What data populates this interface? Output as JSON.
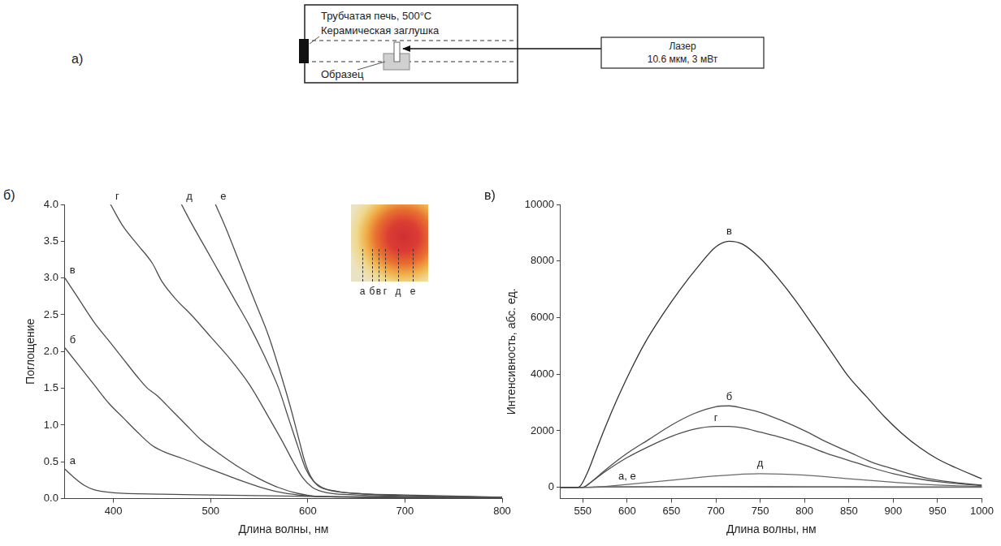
{
  "diagram": {
    "panel": "а)",
    "furnace": "Трубчатая печь, 500°C",
    "plug": "Керамическая заглушка",
    "sample": "Образец",
    "laser": [
      "Лазер",
      "10.6 мкм, 3 мВт"
    ]
  },
  "chart_data": [
    {
      "panel": "б)",
      "type": "line",
      "x_label": "Длина волны, нм",
      "y_label": "Поглощение",
      "xlim": [
        350,
        800
      ],
      "xticks": [
        400,
        500,
        600,
        700,
        800
      ],
      "ylim": [
        0,
        4
      ],
      "yticks": [
        {
          "value": 0,
          "label": "0.0"
        },
        {
          "value": 0.5,
          "label": "0.5"
        },
        {
          "value": 1,
          "label": "1.0"
        },
        {
          "value": 1.5,
          "label": "1.5"
        },
        {
          "value": 2,
          "label": "2.0"
        },
        {
          "value": 2.5,
          "label": "2.5"
        },
        {
          "value": 3,
          "label": "3.0"
        },
        {
          "value": 3.5,
          "label": "3.5"
        },
        {
          "value": 4,
          "label": "4.0"
        }
      ],
      "grid": false,
      "inset": {
        "labels": [
          "а",
          "б",
          "в",
          "г",
          "д",
          "е"
        ]
      },
      "series": [
        {
          "name": "а",
          "color": "#4d4d4d",
          "x": [
            350,
            360,
            370,
            380,
            400,
            450,
            500,
            600,
            700,
            800
          ],
          "values": [
            0.4,
            0.28,
            0.18,
            0.12,
            0.08,
            0.06,
            0.05,
            0.03,
            0.02,
            0.01
          ]
        },
        {
          "name": "б",
          "color": "#4d4d4d",
          "x": [
            350,
            365,
            380,
            395,
            410,
            425,
            440,
            455,
            470,
            490,
            510,
            530,
            550,
            570,
            590,
            610,
            650,
            700,
            800
          ],
          "values": [
            2.05,
            1.8,
            1.55,
            1.3,
            1.1,
            0.9,
            0.72,
            0.62,
            0.55,
            0.45,
            0.35,
            0.25,
            0.16,
            0.09,
            0.05,
            0.03,
            0.02,
            0.01,
            0.01
          ]
        },
        {
          "name": "в",
          "color": "#4d4d4d",
          "x": [
            350,
            365,
            380,
            395,
            410,
            425,
            435,
            445,
            460,
            475,
            490,
            510,
            530,
            550,
            570,
            590,
            610,
            650,
            700,
            800
          ],
          "values": [
            3.0,
            2.7,
            2.4,
            2.15,
            1.9,
            1.65,
            1.5,
            1.4,
            1.2,
            1.0,
            0.8,
            0.6,
            0.42,
            0.27,
            0.15,
            0.07,
            0.03,
            0.02,
            0.01,
            0.01
          ]
        },
        {
          "name": "г",
          "color": "#4d4d4d",
          "x": [
            397,
            410,
            425,
            440,
            450,
            465,
            480,
            500,
            520,
            540,
            560,
            575,
            585,
            595,
            605,
            620,
            650,
            700,
            800
          ],
          "values": [
            4.0,
            3.7,
            3.45,
            3.2,
            2.95,
            2.7,
            2.5,
            2.2,
            1.9,
            1.55,
            1.1,
            0.75,
            0.5,
            0.28,
            0.15,
            0.08,
            0.05,
            0.03,
            0.01
          ]
        },
        {
          "name": "д",
          "color": "#4d4d4d",
          "x": [
            470,
            480,
            495,
            510,
            525,
            540,
            555,
            570,
            580,
            590,
            598,
            605,
            615,
            630,
            650,
            700,
            800
          ],
          "values": [
            4.0,
            3.75,
            3.4,
            3.05,
            2.7,
            2.35,
            1.95,
            1.5,
            1.1,
            0.7,
            0.4,
            0.25,
            0.15,
            0.1,
            0.07,
            0.04,
            0.02
          ]
        },
        {
          "name": "е",
          "color": "#4d4d4d",
          "x": [
            505,
            515,
            530,
            545,
            560,
            572,
            582,
            590,
            597,
            603,
            610,
            620,
            640,
            700,
            800
          ],
          "values": [
            4.0,
            3.7,
            3.2,
            2.7,
            2.2,
            1.7,
            1.25,
            0.85,
            0.5,
            0.3,
            0.18,
            0.12,
            0.08,
            0.05,
            0.02
          ]
        }
      ]
    },
    {
      "panel": "в)",
      "type": "line",
      "x_label": "Длина волны, нм",
      "y_label": "Интенсивность, абс. ед.",
      "xlim": [
        525,
        1000
      ],
      "xticks": [
        550,
        600,
        650,
        700,
        750,
        800,
        850,
        900,
        950,
        1000
      ],
      "ylim": [
        -400,
        10000
      ],
      "yticks": [
        0,
        2000,
        4000,
        6000,
        8000,
        10000
      ],
      "grid": false,
      "annotations": [
        {
          "text": "в",
          "x": 715,
          "y": 8850
        },
        {
          "text": "б",
          "x": 715,
          "y": 3000
        },
        {
          "text": "г",
          "x": 700,
          "y": 2250
        },
        {
          "text": "д",
          "x": 750,
          "y": 650
        },
        {
          "text": "а, е",
          "x": 600,
          "y": 180
        }
      ],
      "series": [
        {
          "name": "в",
          "color": "#333333",
          "x": [
            525,
            545,
            555,
            565,
            575,
            590,
            605,
            620,
            640,
            660,
            680,
            700,
            715,
            730,
            750,
            770,
            790,
            810,
            830,
            850,
            870,
            890,
            910,
            930,
            950,
            970,
            1000
          ],
          "values": [
            0,
            0,
            500,
            1300,
            2100,
            3200,
            4200,
            5100,
            6100,
            7000,
            7800,
            8500,
            8700,
            8600,
            8100,
            7400,
            6600,
            5700,
            4800,
            3900,
            3200,
            2500,
            1900,
            1400,
            1000,
            700,
            300
          ]
        },
        {
          "name": "б",
          "color": "#4d4d4d",
          "x": [
            525,
            550,
            560,
            575,
            600,
            625,
            650,
            675,
            700,
            715,
            730,
            750,
            775,
            800,
            825,
            850,
            875,
            900,
            925,
            950,
            975,
            1000
          ],
          "values": [
            0,
            0,
            200,
            600,
            1200,
            1700,
            2200,
            2600,
            2850,
            2880,
            2800,
            2650,
            2350,
            2000,
            1600,
            1250,
            900,
            650,
            420,
            250,
            150,
            80
          ]
        },
        {
          "name": "г",
          "color": "#4d4d4d",
          "x": [
            525,
            550,
            560,
            575,
            600,
            625,
            650,
            675,
            700,
            715,
            730,
            750,
            775,
            800,
            825,
            850,
            875,
            900,
            925,
            950,
            975,
            1000
          ],
          "values": [
            0,
            0,
            200,
            550,
            1050,
            1450,
            1800,
            2050,
            2150,
            2150,
            2100,
            1950,
            1750,
            1500,
            1200,
            950,
            700,
            480,
            320,
            200,
            120,
            60
          ]
        },
        {
          "name": "д",
          "color": "#6a6a6a",
          "x": [
            525,
            550,
            575,
            600,
            650,
            700,
            750,
            800,
            850,
            900,
            950,
            1000
          ],
          "values": [
            0,
            0,
            30,
            100,
            250,
            400,
            480,
            430,
            300,
            180,
            80,
            30
          ]
        },
        {
          "name": "а",
          "color": "#6a6a6a",
          "x": [
            525,
            550,
            575,
            600,
            700,
            800,
            900,
            1000
          ],
          "values": [
            0,
            0,
            20,
            25,
            30,
            25,
            15,
            10
          ]
        },
        {
          "name": "е",
          "color": "#6a6a6a",
          "x": [
            525,
            550,
            575,
            600,
            700,
            800,
            900,
            1000
          ],
          "values": [
            0,
            0,
            10,
            10,
            15,
            10,
            5,
            5
          ]
        }
      ]
    }
  ]
}
